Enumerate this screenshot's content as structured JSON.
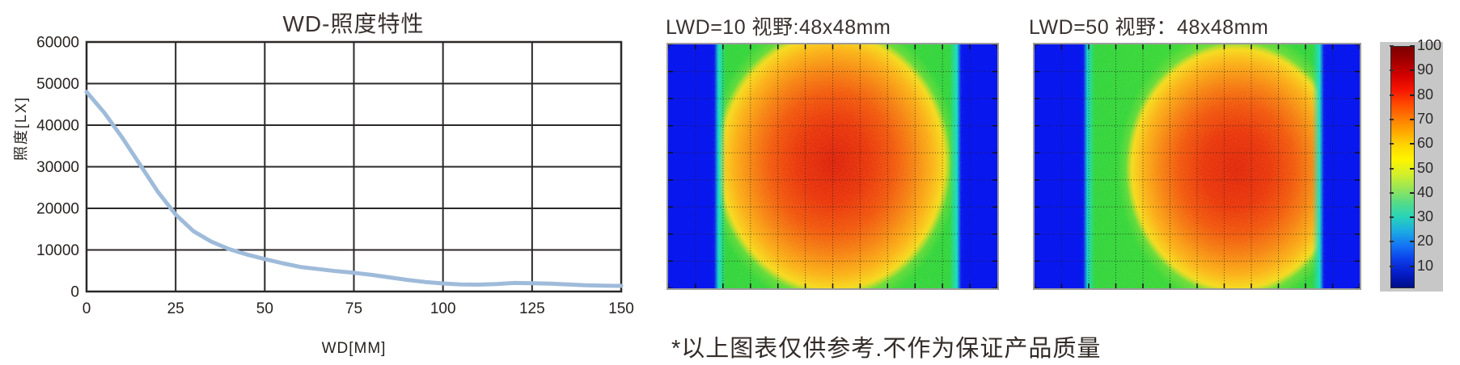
{
  "page": {
    "background": "#ffffff",
    "footnote": "*以上图表仅供参考.不作为保证产品质量"
  },
  "chart_data": [
    {
      "type": "line",
      "title": "WD-照度特性",
      "xlabel": "WD[MM]",
      "ylabel": "照度[LX]",
      "xlim": [
        0,
        150
      ],
      "ylim": [
        0,
        60000
      ],
      "xticks": [
        0,
        25,
        50,
        75,
        100,
        125,
        150
      ],
      "yticks": [
        0,
        10000,
        20000,
        30000,
        40000,
        50000,
        60000
      ],
      "grid": true,
      "legend": "none",
      "line_color": "#9fbbda",
      "grid_color": "#2b2928",
      "x": [
        0,
        5,
        10,
        15,
        20,
        25,
        30,
        35,
        40,
        45,
        50,
        55,
        60,
        65,
        70,
        75,
        80,
        85,
        90,
        95,
        100,
        105,
        110,
        115,
        120,
        125,
        130,
        135,
        140,
        145,
        150
      ],
      "y": [
        48000,
        43000,
        37000,
        30500,
        24000,
        18500,
        14500,
        12000,
        10200,
        8900,
        7800,
        6800,
        5900,
        5400,
        4900,
        4500,
        4000,
        3400,
        2800,
        2300,
        1950,
        1700,
        1650,
        1800,
        2050,
        2000,
        1900,
        1700,
        1500,
        1400,
        1350
      ]
    },
    {
      "type": "heatmap",
      "title": "LWD=10  视野:48x48mm",
      "value_range": [
        0,
        100
      ],
      "peak_value": 90,
      "plateau_value": 55,
      "border_value": 10,
      "left_band_pct": 14,
      "right_band_pct": 11,
      "hotspot": {
        "cx_pct": 50,
        "cy_pct": 48.5
      },
      "core_rx_pct": 36,
      "core_ry_pct": 55,
      "halo_rx_pct": 40,
      "halo_ry_pct": 63,
      "grid": {
        "cols": 12,
        "rows": 9
      },
      "colors": {
        "border_blue": "#0917ef",
        "edge_cyan": "#19dcc8",
        "core_red": "#dd2410"
      }
    },
    {
      "type": "heatmap",
      "title": "LWD=50  视野：48x48mm",
      "value_range": [
        0,
        100
      ],
      "peak_value": 88,
      "plateau_value": 52,
      "border_value": 10,
      "left_band_pct": 15,
      "right_band_pct": 11,
      "hotspot": {
        "cx_pct": 62,
        "cy_pct": 51
      },
      "core_rx_pct": 34,
      "core_ry_pct": 52,
      "halo_rx_pct": 38,
      "halo_ry_pct": 60,
      "grid": {
        "cols": 12,
        "rows": 9
      },
      "colors": {
        "border_blue": "#0917ef",
        "edge_cyan": "#19dcc8",
        "core_red": "#e02a10"
      }
    },
    {
      "type": "colorbar",
      "ticks": [
        100,
        90,
        80,
        70,
        60,
        50,
        40,
        30,
        20,
        10
      ],
      "panel_color": "#c7c7c7",
      "colors_top_to_bottom": [
        "#7c0000",
        "#a30000",
        "#d20000",
        "#f51400",
        "#ff4700",
        "#ff7900",
        "#ffa800",
        "#ffd700",
        "#fdf500",
        "#d3ef2b",
        "#97e657",
        "#56dc88",
        "#28d4b8",
        "#1cace2",
        "#1476f4",
        "#0c40ea",
        "#051cc8",
        "#000e86"
      ]
    }
  ]
}
